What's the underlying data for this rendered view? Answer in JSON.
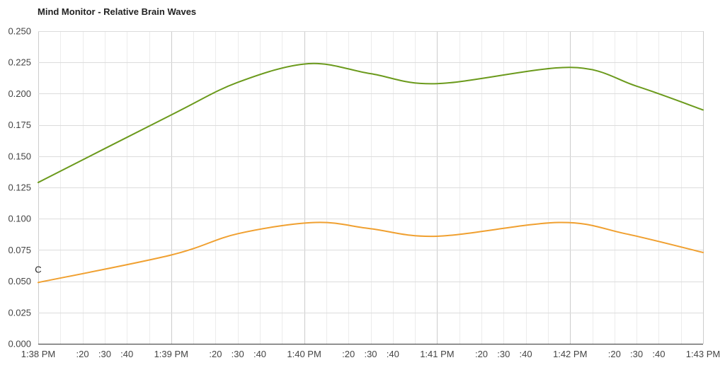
{
  "title": "Mind Monitor - Relative Brain Waves",
  "chart_data": {
    "type": "line",
    "title": "Mind Monitor - Relative Brain Waves",
    "xlabel": "",
    "ylabel": "",
    "x_unit": "seconds from 1:38 PM",
    "xlim": [
      0,
      300
    ],
    "ylim": [
      0,
      0.25
    ],
    "grid": true,
    "legend": "none",
    "y_ticks": [
      "0.000",
      "0.025",
      "0.050",
      "0.075",
      "0.100",
      "0.125",
      "0.150",
      "0.175",
      "0.200",
      "0.225",
      "0.250"
    ],
    "y_tick_values": [
      0,
      0.025,
      0.05,
      0.075,
      0.1,
      0.125,
      0.15,
      0.175,
      0.2,
      0.225,
      0.25
    ],
    "x_major_ticks": [
      {
        "x": 0,
        "label": "1:38 PM"
      },
      {
        "x": 60,
        "label": "1:39 PM"
      },
      {
        "x": 120,
        "label": "1:40 PM"
      },
      {
        "x": 180,
        "label": "1:41 PM"
      },
      {
        "x": 240,
        "label": "1:42 PM"
      },
      {
        "x": 300,
        "label": "1:43 PM"
      }
    ],
    "x_minor_ticks": [
      {
        "x": 20,
        "label": ":20"
      },
      {
        "x": 30,
        "label": ":30"
      },
      {
        "x": 40,
        "label": ":40"
      },
      {
        "x": 80,
        "label": ":20"
      },
      {
        "x": 90,
        "label": ":30"
      },
      {
        "x": 100,
        "label": ":40"
      },
      {
        "x": 140,
        "label": ":20"
      },
      {
        "x": 150,
        "label": ":30"
      },
      {
        "x": 160,
        "label": ":40"
      },
      {
        "x": 200,
        "label": ":20"
      },
      {
        "x": 210,
        "label": ":30"
      },
      {
        "x": 220,
        "label": ":40"
      },
      {
        "x": 260,
        "label": ":20"
      },
      {
        "x": 270,
        "label": ":30"
      },
      {
        "x": 280,
        "label": ":40"
      }
    ],
    "x_minor_gridlines": [
      10,
      20,
      30,
      40,
      50,
      70,
      80,
      90,
      100,
      110,
      130,
      140,
      150,
      160,
      170,
      190,
      200,
      210,
      220,
      230,
      250,
      260,
      270,
      280,
      290
    ],
    "series": [
      {
        "color": "#6b9a1c",
        "points": [
          [
            0,
            0.129
          ],
          [
            60,
            0.183
          ],
          [
            90,
            0.209
          ],
          [
            122,
            0.224
          ],
          [
            150,
            0.216
          ],
          [
            180,
            0.208
          ],
          [
            240,
            0.221
          ],
          [
            270,
            0.206
          ],
          [
            300,
            0.187
          ]
        ]
      },
      {
        "color": "#f0a030",
        "points": [
          [
            0,
            0.049
          ],
          [
            60,
            0.071
          ],
          [
            90,
            0.088
          ],
          [
            125,
            0.097
          ],
          [
            150,
            0.092
          ],
          [
            180,
            0.086
          ],
          [
            235,
            0.097
          ],
          [
            265,
            0.088
          ],
          [
            300,
            0.073
          ]
        ]
      }
    ],
    "annotations": [
      {
        "x": 0,
        "y": 0.05,
        "text": "C"
      }
    ]
  }
}
